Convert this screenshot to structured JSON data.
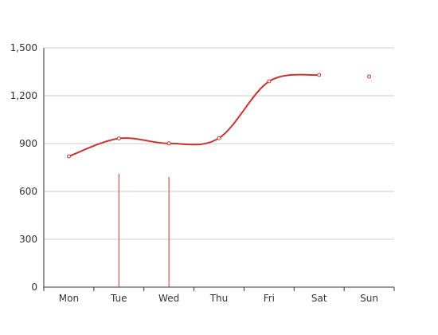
{
  "chart_data": {
    "type": "line",
    "categories": [
      "Mon",
      "Tue",
      "Wed",
      "Thu",
      "Fri",
      "Sat",
      "Sun"
    ],
    "values": [
      820,
      932,
      901,
      934,
      1290,
      1330,
      1320
    ],
    "smooth": true,
    "line_drawn_through": "Sat",
    "bars": [
      {
        "category": "Tue",
        "value": 710
      },
      {
        "category": "Wed",
        "value": 690
      }
    ],
    "ylim": [
      0,
      1500
    ],
    "yticks": [
      0,
      300,
      600,
      900,
      1200,
      1500
    ],
    "ytick_labels": [
      "0",
      "300",
      "600",
      "900",
      "1,200",
      "1,500"
    ],
    "grid": true,
    "title": "",
    "xlabel": "",
    "ylabel": "",
    "colors": {
      "line": "#c23531",
      "grid": "#cccccc",
      "axis": "#333333",
      "text": "#333333"
    }
  }
}
